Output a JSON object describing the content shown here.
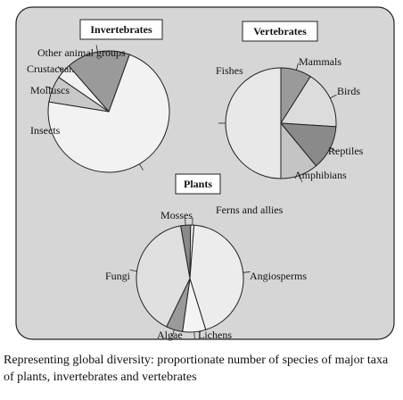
{
  "chart_data": [
    {
      "type": "pie",
      "title": "Invertebrates",
      "categories": [
        "Insects",
        "Molluscs",
        "Crustaceans",
        "Other animal groups"
      ],
      "values": [
        72,
        7,
        4,
        17
      ],
      "colors": [
        "#f2f2f2",
        "#c8c8c8",
        "#f2f2f2",
        "#9a9a9a"
      ]
    },
    {
      "type": "pie",
      "title": "Vertebrates",
      "categories": [
        "Mammals",
        "Birds",
        "Reptiles",
        "Amphibians",
        "Fishes"
      ],
      "values": [
        9,
        17,
        13,
        11,
        50
      ],
      "colors": [
        "#9a9a9a",
        "#dcdcdc",
        "#8a8a8a",
        "#c4c4c4",
        "#e8e8e8"
      ]
    },
    {
      "type": "pie",
      "title": "Plants",
      "categories": [
        "Mosses",
        "Ferns and allies",
        "Angiosperms",
        "Lichens",
        "Algae",
        "Fungi"
      ],
      "values": [
        3,
        1,
        44,
        7,
        5,
        40
      ],
      "colors": [
        "#8a8a8a",
        "#f4f4f4",
        "#ececec",
        "#f4f4f4",
        "#9a9a9a",
        "#e0e0e0"
      ]
    }
  ],
  "caption": "Representing global diversity: proportionate number of species of major taxa of plants, invertebrates and vertebrates"
}
